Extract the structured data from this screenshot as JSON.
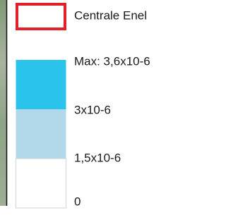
{
  "legend": {
    "marker": {
      "label": "Centrale Enel",
      "color": "#e3202a"
    },
    "scale": {
      "labels": [
        "Max: 3,6x10-6",
        "3x10-6",
        "1,5x10-6",
        "0"
      ],
      "colors": [
        "#29c3ec",
        "#b1d9e9",
        "#ffffff"
      ]
    }
  }
}
